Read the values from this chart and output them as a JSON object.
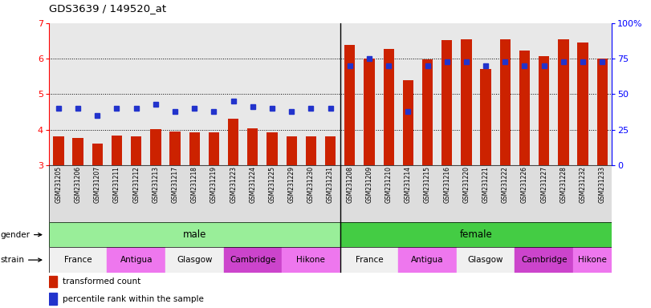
{
  "title": "GDS3639 / 149520_at",
  "samples": [
    "GSM231205",
    "GSM231206",
    "GSM231207",
    "GSM231211",
    "GSM231212",
    "GSM231213",
    "GSM231217",
    "GSM231218",
    "GSM231219",
    "GSM231223",
    "GSM231224",
    "GSM231225",
    "GSM231229",
    "GSM231230",
    "GSM231231",
    "GSM231208",
    "GSM231209",
    "GSM231210",
    "GSM231214",
    "GSM231215",
    "GSM231216",
    "GSM231220",
    "GSM231221",
    "GSM231222",
    "GSM231226",
    "GSM231227",
    "GSM231228",
    "GSM231232",
    "GSM231233"
  ],
  "red_values": [
    3.82,
    3.77,
    3.6,
    3.83,
    3.8,
    4.02,
    3.95,
    3.92,
    3.93,
    4.3,
    4.03,
    3.92,
    3.8,
    3.82,
    3.82,
    6.38,
    6.0,
    6.28,
    5.38,
    5.97,
    6.52,
    6.55,
    5.7,
    6.55,
    6.23,
    6.08,
    6.55,
    6.45,
    6.0
  ],
  "blue_percentiles": [
    40,
    40,
    35,
    40,
    40,
    43,
    38,
    40,
    38,
    45,
    41,
    40,
    38,
    40,
    40,
    70,
    75,
    70,
    38,
    70,
    73,
    73,
    70,
    73,
    70,
    70,
    73,
    73,
    73
  ],
  "ylim_left": [
    3.0,
    7.0
  ],
  "ylim_right": [
    0,
    100
  ],
  "yticks_left": [
    3,
    4,
    5,
    6,
    7
  ],
  "yticks_right": [
    0,
    25,
    50,
    75,
    100
  ],
  "bar_color": "#cc2200",
  "dot_color": "#2233cc",
  "green_light": "#99ee99",
  "green_dark": "#44cc44",
  "strain_info": [
    [
      0,
      2,
      "France",
      "#f0f0f0"
    ],
    [
      3,
      5,
      "Antigua",
      "#ee77ee"
    ],
    [
      6,
      8,
      "Glasgow",
      "#f0f0f0"
    ],
    [
      9,
      11,
      "Cambridge",
      "#cc44cc"
    ],
    [
      12,
      14,
      "Hikone",
      "#ee77ee"
    ],
    [
      15,
      17,
      "France",
      "#f0f0f0"
    ],
    [
      18,
      20,
      "Antigua",
      "#ee77ee"
    ],
    [
      21,
      23,
      "Glasgow",
      "#f0f0f0"
    ],
    [
      24,
      26,
      "Cambridge",
      "#cc44cc"
    ],
    [
      27,
      28,
      "Hikone",
      "#ee77ee"
    ]
  ]
}
